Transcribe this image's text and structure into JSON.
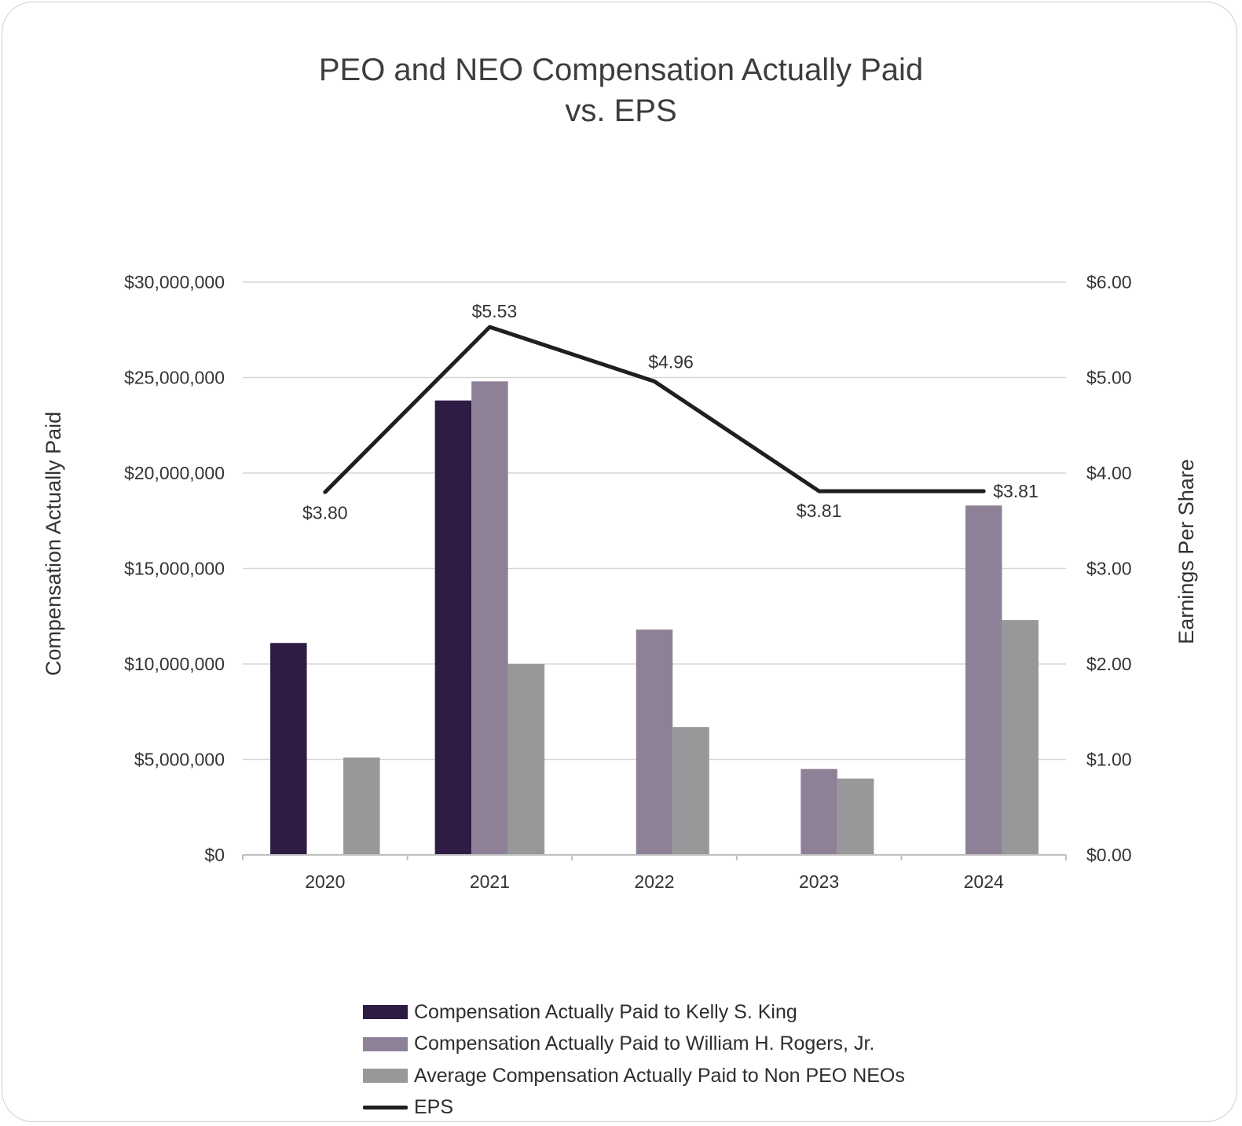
{
  "colors": {
    "king": "#2e1c45",
    "rogers": "#8e8197",
    "neo": "#98989a",
    "eps": "#1f1f1f",
    "grid": "#d6d6d6",
    "axis": "#bfbfbf"
  },
  "chart_data": {
    "type": "bar",
    "title_line1": "PEO and NEO Compensation Actually Paid",
    "title_line2": "vs. EPS",
    "categories": [
      "2020",
      "2021",
      "2022",
      "2023",
      "2024"
    ],
    "ylabel": "Compensation Actually Paid",
    "y2label": "Earnings Per Share",
    "ylim": [
      0,
      30000000
    ],
    "y2lim": [
      0,
      6
    ],
    "yticks": [
      "$0",
      "$5,000,000",
      "$10,000,000",
      "$15,000,000",
      "$20,000,000",
      "$25,000,000",
      "$30,000,000"
    ],
    "y2ticks": [
      "$0.00",
      "$1.00",
      "$2.00",
      "$3.00",
      "$4.00",
      "$5.00",
      "$6.00"
    ],
    "grid": true,
    "legend_position": "bottom",
    "series": [
      {
        "name": "Compensation Actually Paid to Kelly S. King",
        "type": "bar",
        "color_key": "king",
        "values": [
          11100000,
          23800000,
          null,
          null,
          null
        ]
      },
      {
        "name": "Compensation Actually Paid to William H. Rogers, Jr.",
        "type": "bar",
        "color_key": "rogers",
        "values": [
          null,
          24800000,
          11800000,
          4500000,
          18300000
        ]
      },
      {
        "name": "Average Compensation Actually Paid to Non PEO NEOs",
        "type": "bar",
        "color_key": "neo",
        "values": [
          5100000,
          10000000,
          6700000,
          4000000,
          12300000
        ]
      },
      {
        "name": "EPS",
        "type": "line",
        "axis": "right",
        "color_key": "eps",
        "values": [
          3.8,
          5.53,
          4.96,
          3.81,
          3.81
        ],
        "labels": [
          "$3.80",
          "$5.53",
          "$4.96",
          "$3.81",
          "$3.81"
        ]
      }
    ]
  }
}
